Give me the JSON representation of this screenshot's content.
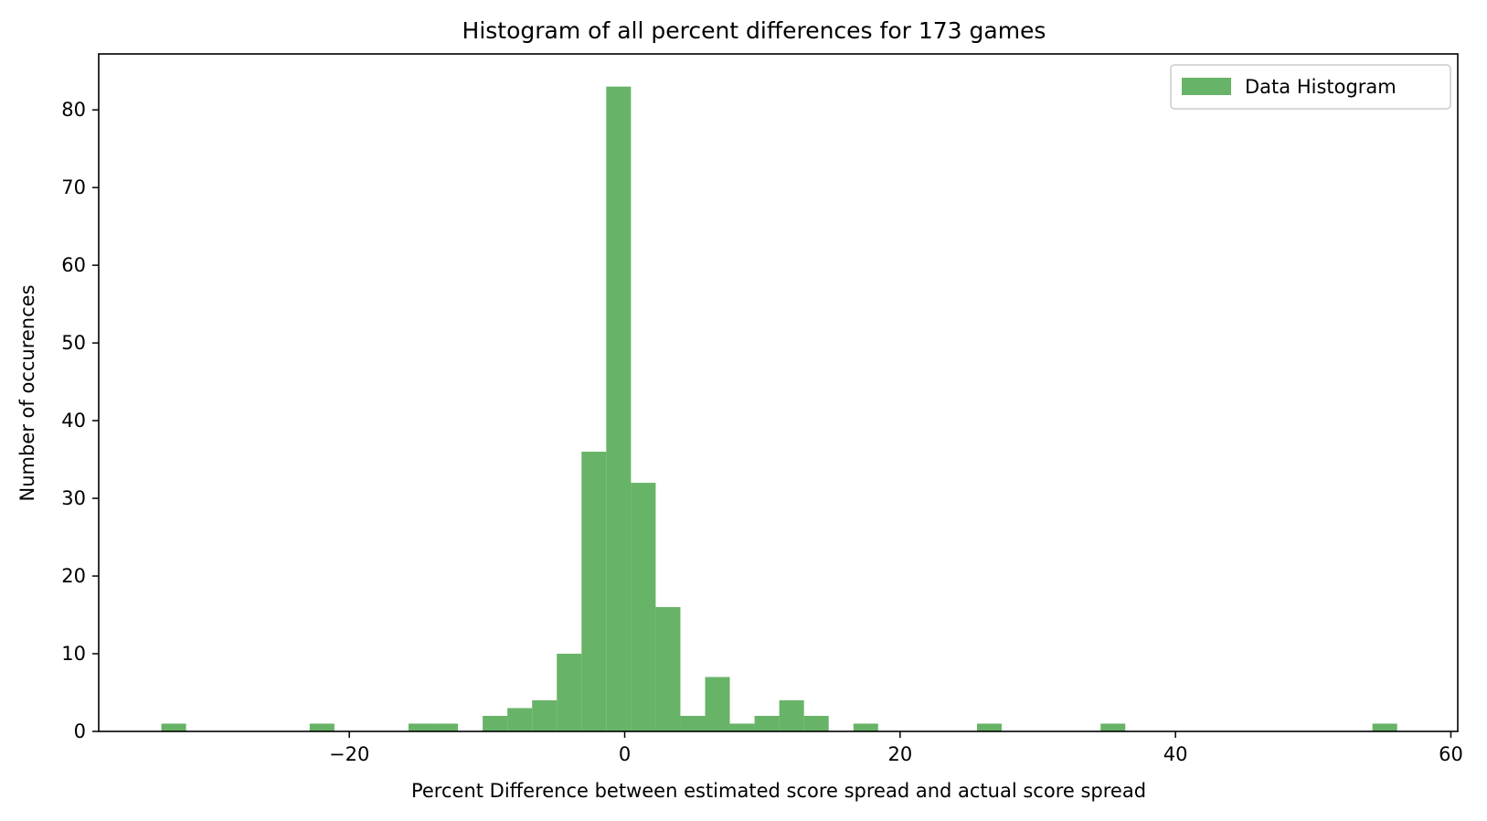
{
  "chart_data": {
    "type": "bar",
    "title": "Histogram of all percent differences for 173 games",
    "xlabel": "Percent Difference between estimated score spread and actual score spread",
    "ylabel": "Number of occurences",
    "xlim": [
      -38.2,
      60.5
    ],
    "ylim": [
      0,
      87.2
    ],
    "xticks": [
      -20,
      0,
      20,
      40,
      60
    ],
    "xtick_labels": [
      "−20",
      "0",
      "20",
      "40",
      "60"
    ],
    "yticks": [
      0,
      10,
      20,
      30,
      40,
      50,
      60,
      70,
      80
    ],
    "ytick_labels": [
      "0",
      "10",
      "20",
      "30",
      "40",
      "50",
      "60",
      "70",
      "80"
    ],
    "grid": false,
    "legend_position": "top-right",
    "bar_color": "#67b367",
    "bins": {
      "start": -33.65,
      "width": 1.795,
      "counts": [
        1,
        0,
        0,
        0,
        0,
        0,
        1,
        0,
        0,
        0,
        1,
        1,
        0,
        2,
        3,
        4,
        10,
        36,
        83,
        32,
        16,
        2,
        7,
        1,
        2,
        4,
        2,
        0,
        1,
        0,
        0,
        0,
        0,
        1,
        0,
        0,
        0,
        0,
        1,
        0,
        0,
        0,
        0,
        0,
        0,
        0,
        0,
        0,
        0,
        1
      ]
    },
    "series": [
      {
        "name": "Data Histogram",
        "color": "#67b367"
      }
    ]
  }
}
